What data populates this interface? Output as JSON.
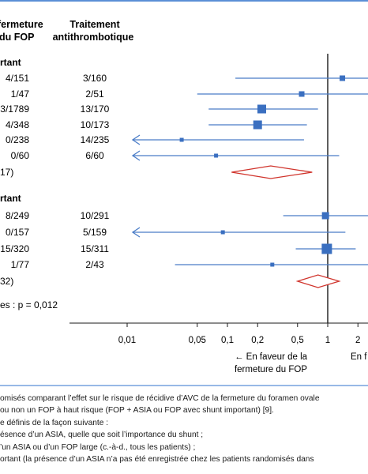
{
  "columns": {
    "col1": [
      "fermeture",
      "du FOP"
    ],
    "col2": [
      "Traitement",
      "antithrombotique"
    ]
  },
  "groups": [
    {
      "label": "rtant",
      "rows": [
        {
          "c1": "4/151",
          "c2": "3/160"
        },
        {
          "c1": "1/47",
          "c2": "2/51"
        },
        {
          "c1": "3/1789",
          "c2": "13/170"
        },
        {
          "c1": "4/348",
          "c2": "10/173"
        },
        {
          "c1": "0/238",
          "c2": "14/235"
        },
        {
          "c1": "0/60",
          "c2": "6/60"
        }
      ],
      "summary_label": "17)"
    },
    {
      "label": "rtant",
      "rows": [
        {
          "c1": "8/249",
          "c2": "10/291"
        },
        {
          "c1": "0/157",
          "c2": "5/159"
        },
        {
          "c1": "15/320",
          "c2": "15/311"
        },
        {
          "c1": "1/77",
          "c2": "2/43"
        }
      ],
      "summary_label": "32)"
    }
  ],
  "heterogeneity": "es : p = 0,012",
  "axis_note_left": [
    "← En faveur de la",
    "fermeture du FOP"
  ],
  "axis_note_right": "En f",
  "chart_data": {
    "type": "forest",
    "x_scale": "log",
    "x_ticks": [
      "0,01",
      "0,05",
      "0,1",
      "0,2",
      "0,5",
      "1",
      "2"
    ],
    "x_tick_values": [
      0.01,
      0.05,
      0.1,
      0.2,
      0.5,
      1,
      2
    ],
    "reference_line": 1,
    "studies": [
      {
        "group": 0,
        "est": 1.4,
        "lo": 0.12,
        "hi": 2.6,
        "size": "small"
      },
      {
        "group": 0,
        "est": 0.55,
        "lo": 0.05,
        "hi": 2.6,
        "size": "small"
      },
      {
        "group": 0,
        "est": 0.22,
        "lo": 0.065,
        "hi": 0.8,
        "size": "large"
      },
      {
        "group": 0,
        "est": 0.2,
        "lo": 0.065,
        "hi": 0.62,
        "size": "large"
      },
      {
        "group": 0,
        "est": 0.035,
        "lo": 0.0035,
        "hi": 0.58,
        "size": "tiny",
        "arrow_left": true
      },
      {
        "group": 0,
        "est": 0.077,
        "lo": 0.0035,
        "hi": 1.3,
        "size": "tiny",
        "arrow_left": true
      },
      {
        "group": 1,
        "est": 0.95,
        "lo": 0.36,
        "hi": 2.6,
        "size": "medium"
      },
      {
        "group": 1,
        "est": 0.09,
        "lo": 0.0035,
        "hi": 1.5,
        "size": "tiny",
        "arrow_left": true
      },
      {
        "group": 1,
        "est": 0.98,
        "lo": 0.48,
        "hi": 1.9,
        "size": "xlarge"
      },
      {
        "group": 1,
        "est": 0.28,
        "lo": 0.03,
        "hi": 2.6,
        "size": "tiny"
      }
    ],
    "summaries": [
      {
        "group": 0,
        "est": 0.27,
        "lo": 0.11,
        "hi": 0.7
      },
      {
        "group": 1,
        "est": 0.8,
        "lo": 0.5,
        "hi": 1.3
      }
    ],
    "colors": {
      "ci": "#4a7cc7",
      "box": "#3a6fc0",
      "diamond": "#d0342c",
      "ref": "#1a1a1a",
      "rule": "#5a8fd6"
    }
  },
  "caption": [
    "omisés comparant l’effet sur le risque de récidive d’AVC de la fermeture du foramen ovale",
    "ou non un FOP à haut risque (FOP + ASIA ou FOP avec shunt important) [9].",
    "e définis de la façon suivante :",
    "ésence d’un ASIA, quelle que soit l’importance du shunt ;",
    "’un ASIA ou d’un FOP large (c.-à-d., tous les patients) ;",
    "ortant (la présence d’un ASIA n’a pas été enregistrée chez les patients randomisés dans"
  ]
}
